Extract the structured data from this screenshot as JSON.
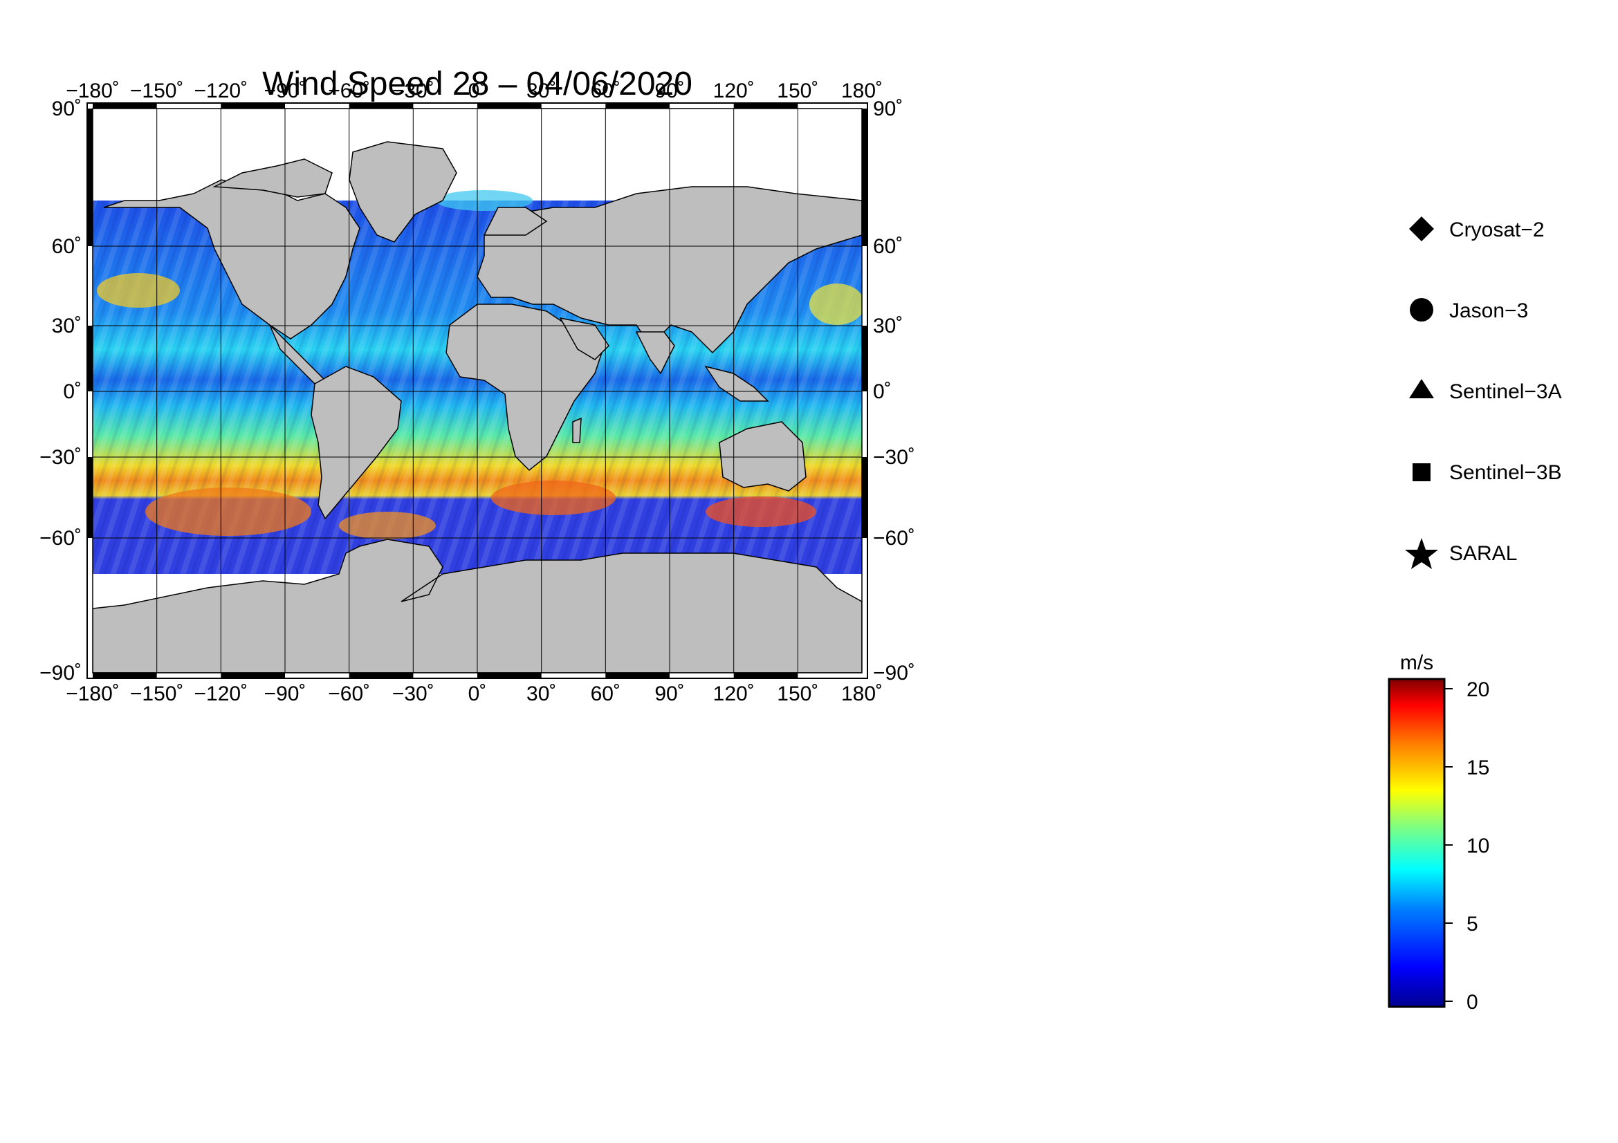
{
  "title": "Wind Speed 28 – 04/06/2020",
  "map": {
    "lon_ticks": [
      "−180˚",
      "−150˚",
      "−120˚",
      "−90˚",
      "−60˚",
      "−30˚",
      "0˚",
      "30˚",
      "60˚",
      "90˚",
      "120˚",
      "150˚",
      "180˚"
    ],
    "lat_ticks": [
      "90˚",
      "60˚",
      "30˚",
      "0˚",
      "−30˚",
      "−60˚",
      "−90˚"
    ],
    "land_color": "#bebebe",
    "ice_color": "#ffffff",
    "grid_color": "#000000"
  },
  "legend": {
    "items": [
      {
        "label": "Cryosat−2",
        "icon": "diamond-icon"
      },
      {
        "label": "Jason−3",
        "icon": "circle-icon"
      },
      {
        "label": "Sentinel−3A",
        "icon": "triangle-icon"
      },
      {
        "label": "Sentinel−3B",
        "icon": "square-icon"
      },
      {
        "label": "SARAL",
        "icon": "star-icon"
      }
    ]
  },
  "colorbar": {
    "unit": "m/s",
    "ticks": [
      "20",
      "15",
      "10",
      "5",
      "0"
    ],
    "min": 0,
    "max": 21,
    "colors": [
      "#00008f",
      "#0000ff",
      "#0080ff",
      "#00ffff",
      "#80ff80",
      "#ffff00",
      "#ff8000",
      "#ff0000",
      "#800000"
    ]
  }
}
